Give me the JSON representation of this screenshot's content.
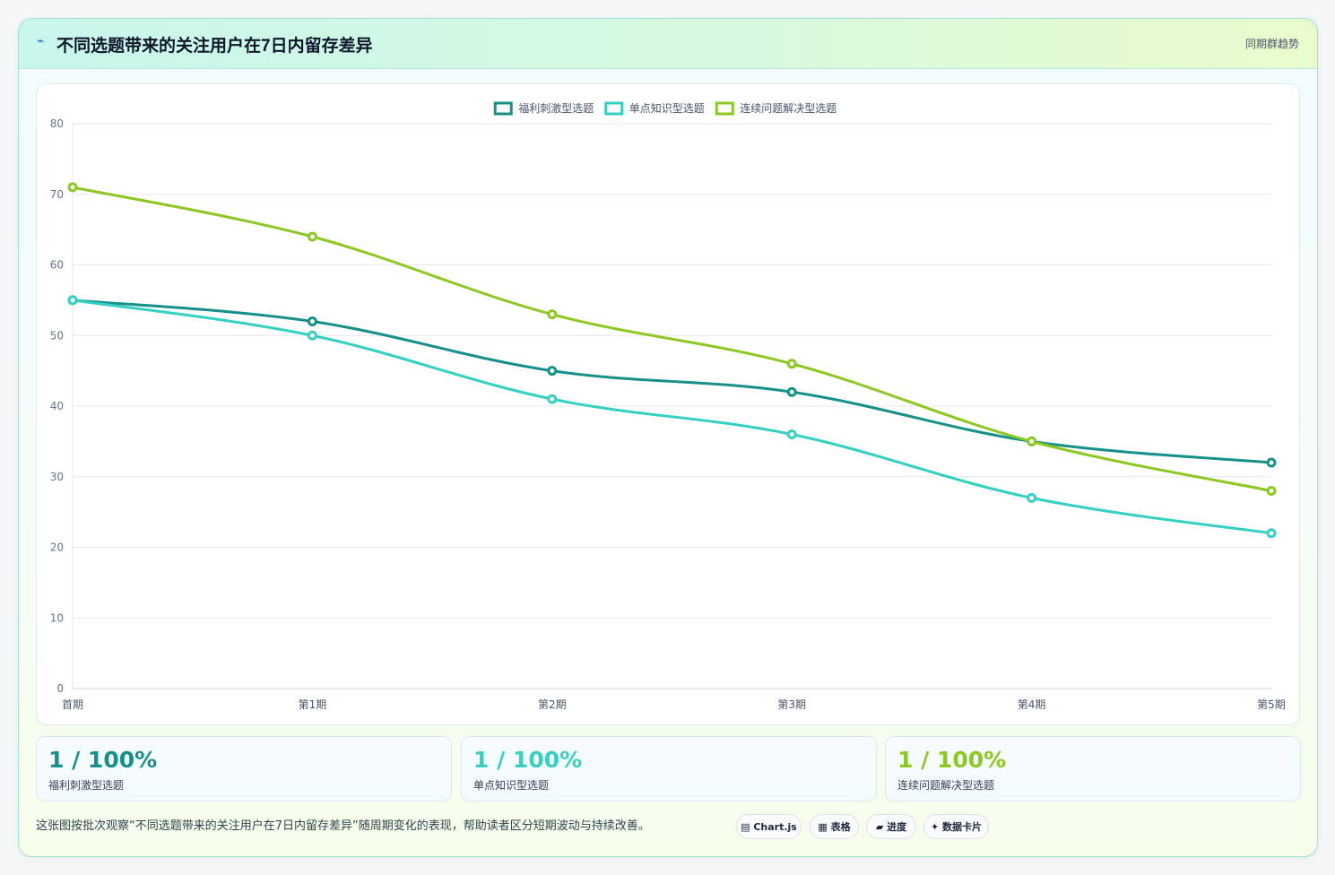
{
  "header": {
    "icon": "chart-line-icon",
    "title": "不同选题带来的关注用户在7日内留存差异",
    "subtitle": "同期群趋势"
  },
  "chart_data": {
    "type": "line",
    "categories": [
      "首期",
      "第1期",
      "第2期",
      "第3期",
      "第4期",
      "第5期"
    ],
    "series": [
      {
        "name": "福利刺激型选题",
        "color": "#15908a",
        "values": [
          55,
          52,
          45,
          42,
          35,
          32
        ]
      },
      {
        "name": "单点知识型选题",
        "color": "#34d1c3",
        "values": [
          55,
          50,
          41,
          36,
          27,
          22
        ]
      },
      {
        "name": "连续问题解决型选题",
        "color": "#8cc920",
        "values": [
          71,
          64,
          53,
          46,
          35,
          28
        ]
      }
    ],
    "ylim": [
      0,
      80
    ],
    "yticks": [
      0,
      10,
      20,
      30,
      40,
      50,
      60,
      70,
      80
    ],
    "grid": true,
    "legend": "top-center"
  },
  "stats": [
    {
      "value": "1 / 100%",
      "label": "福利刺激型选题",
      "color": "#15908a"
    },
    {
      "value": "1 / 100%",
      "label": "单点知识型选题",
      "color": "#34d1c3"
    },
    {
      "value": "1 / 100%",
      "label": "连续问题解决型选题",
      "color": "#8cc920"
    }
  ],
  "footer": {
    "description": "这张图按批次观察“不同选题带来的关注用户在7日内留存差异”随周期变化的表现，帮助读者区分短期波动与持续改善。",
    "tags": [
      "▤ Chart.js",
      "▦ 表格",
      "▰ 进度",
      "✦ 数据卡片"
    ]
  }
}
